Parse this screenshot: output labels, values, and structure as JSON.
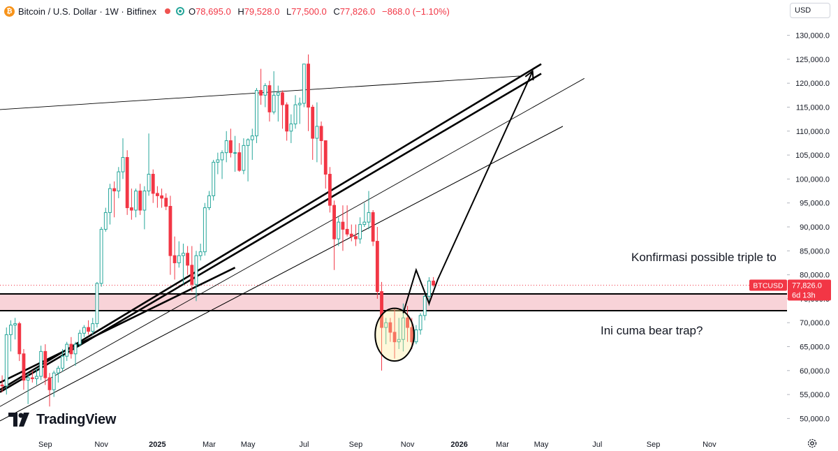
{
  "header": {
    "symbol_title": "Bitcoin / U.S. Dollar · 1W · Bitfinex",
    "ohlc": [
      {
        "k": "O",
        "v": "78,695.0"
      },
      {
        "k": "H",
        "v": "79,528.0"
      },
      {
        "k": "L",
        "v": "77,500.0"
      },
      {
        "k": "C",
        "v": "77,826.0"
      },
      {
        "k": "",
        "v": "−868.0 (−1.10%)"
      }
    ]
  },
  "currency_button": "USD",
  "logo_text": "TradingView",
  "price_label": {
    "ticker": "BTCUSD",
    "price": "77,826.0",
    "countdown": "6d 13h"
  },
  "annotations": {
    "triple_top": "Konfirmasi possible triple to",
    "bear_trap": "Ini cuma bear trap?"
  },
  "colors": {
    "up": "#26a69a",
    "down": "#f23645",
    "zone": "#f8d3d8",
    "text": "#131722",
    "axis_text": "#131722",
    "grid": "#f0f3fa"
  },
  "chart_data": {
    "type": "candlestick",
    "title": "Bitcoin / U.S. Dollar · 1W · Bitfinex",
    "ylim": [
      47000,
      133000
    ],
    "y_ticks": [
      50000,
      55000,
      60000,
      65000,
      70000,
      75000,
      80000,
      85000,
      90000,
      95000,
      100000,
      105000,
      110000,
      115000,
      120000,
      125000,
      130000
    ],
    "y_tick_labels": [
      "50,000.0",
      "55,000.0",
      "60,000.0",
      "65,000.0",
      "70,000.0",
      "75,000.0",
      "80,000.0",
      "85,000.0",
      "90,000.0",
      "95,000.0",
      "100,000.0",
      "105,000.0",
      "110,000.0",
      "115,000.0",
      "120,000.0",
      "125,000.0",
      "130,000.0"
    ],
    "x_ticks": [
      "Sep",
      "Nov",
      "2025",
      "Mar",
      "May",
      "Jul",
      "Sep",
      "Nov",
      "2026",
      "Mar",
      "May",
      "Jul",
      "Sep",
      "Nov"
    ],
    "x_tick_weeks": [
      8,
      21,
      34,
      46,
      55,
      68,
      80,
      92,
      104,
      114,
      123,
      136,
      149,
      162
    ],
    "x_range_weeks": [
      -2.5,
      180
    ],
    "last_price": 77826,
    "candles": [
      [
        -2,
        57000,
        59000,
        55500,
        56800
      ],
      [
        -1,
        56800,
        69000,
        55000,
        67500
      ],
      [
        0,
        67500,
        70500,
        64000,
        69500
      ],
      [
        1,
        69500,
        71000,
        66500,
        69800
      ],
      [
        2,
        69800,
        70200,
        62000,
        63500
      ],
      [
        3,
        63500,
        64500,
        56000,
        58000
      ],
      [
        4,
        58000,
        59500,
        53000,
        58500
      ],
      [
        5,
        58500,
        60000,
        57500,
        58300
      ],
      [
        6,
        58300,
        60500,
        57000,
        58800
      ],
      [
        7,
        58800,
        65200,
        58000,
        64000
      ],
      [
        8,
        64000,
        65500,
        57000,
        58500
      ],
      [
        9,
        58500,
        59500,
        52500,
        56000
      ],
      [
        10,
        56000,
        60000,
        54500,
        59500
      ],
      [
        11,
        59500,
        61000,
        57500,
        60500
      ],
      [
        12,
        60500,
        64500,
        59800,
        63000
      ],
      [
        13,
        63000,
        66000,
        62000,
        65500
      ],
      [
        14,
        65500,
        67000,
        62500,
        63500
      ],
      [
        15,
        63500,
        66000,
        61000,
        65500
      ],
      [
        16,
        65500,
        68500,
        65000,
        67800
      ],
      [
        17,
        67800,
        69500,
        67000,
        69000
      ],
      [
        18,
        69000,
        70500,
        67500,
        68200
      ],
      [
        19,
        68200,
        71000,
        67500,
        69800
      ],
      [
        20,
        69800,
        78500,
        69000,
        78200
      ],
      [
        21,
        78200,
        90000,
        77500,
        89500
      ],
      [
        22,
        89500,
        94000,
        89000,
        93000
      ],
      [
        23,
        93000,
        99000,
        90500,
        98000
      ],
      [
        24,
        98000,
        99500,
        92000,
        97500
      ],
      [
        25,
        97500,
        102500,
        96000,
        101500
      ],
      [
        26,
        101500,
        108500,
        100000,
        104500
      ],
      [
        27,
        104500,
        106000,
        92500,
        94000
      ],
      [
        28,
        94000,
        98000,
        91500,
        93500
      ],
      [
        29,
        93500,
        98000,
        92000,
        97500
      ],
      [
        30,
        97500,
        99000,
        92500,
        93500
      ],
      [
        31,
        93500,
        98500,
        89500,
        97500
      ],
      [
        32,
        97500,
        109500,
        96500,
        101000
      ],
      [
        33,
        101000,
        102000,
        95000,
        97000
      ],
      [
        34,
        97000,
        98500,
        94000,
        96500
      ],
      [
        35,
        96500,
        98000,
        94000,
        96000
      ],
      [
        36,
        96000,
        97000,
        93500,
        94300
      ],
      [
        37,
        94300,
        96500,
        80000,
        84000
      ],
      [
        38,
        84000,
        88000,
        79000,
        82500
      ],
      [
        39,
        82500,
        87000,
        81500,
        84000
      ],
      [
        40,
        84000,
        86500,
        78000,
        84500
      ],
      [
        41,
        84500,
        86000,
        80000,
        82000
      ],
      [
        42,
        82000,
        86000,
        76500,
        78000
      ],
      [
        43,
        78000,
        85000,
        74500,
        84000
      ],
      [
        44,
        84000,
        86500,
        83000,
        84800
      ],
      [
        45,
        84800,
        95000,
        84000,
        94000
      ],
      [
        46,
        94000,
        97500,
        93500,
        96500
      ],
      [
        47,
        96500,
        104000,
        95500,
        103500
      ],
      [
        48,
        103500,
        105500,
        101000,
        104000
      ],
      [
        49,
        104000,
        106000,
        100000,
        105500
      ],
      [
        50,
        105500,
        110000,
        103500,
        108000
      ],
      [
        51,
        108000,
        110500,
        104500,
        105500
      ],
      [
        52,
        105500,
        109000,
        101500,
        105500
      ],
      [
        53,
        105500,
        107500,
        101500,
        101800
      ],
      [
        54,
        101800,
        108500,
        101000,
        107000
      ],
      [
        55,
        107000,
        108500,
        99500,
        108200
      ],
      [
        56,
        108200,
        110500,
        104000,
        109000
      ],
      [
        57,
        109000,
        119000,
        107500,
        118500
      ],
      [
        58,
        118500,
        123000,
        115500,
        117500
      ],
      [
        59,
        117500,
        120000,
        115000,
        119500
      ],
      [
        60,
        119500,
        120500,
        112000,
        114000
      ],
      [
        61,
        114000,
        122500,
        113500,
        117500
      ],
      [
        62,
        117500,
        119500,
        112000,
        118000
      ],
      [
        63,
        118000,
        118500,
        110500,
        115500
      ],
      [
        64,
        115500,
        116000,
        108000,
        110000
      ],
      [
        65,
        110000,
        113500,
        107500,
        111500
      ],
      [
        66,
        111500,
        117500,
        110500,
        115500
      ],
      [
        67,
        115500,
        117000,
        111500,
        115800
      ],
      [
        68,
        115800,
        124000,
        115000,
        124000
      ],
      [
        69,
        124000,
        126000,
        110000,
        115000
      ],
      [
        70,
        115000,
        115500,
        104000,
        108500
      ],
      [
        71,
        108500,
        116000,
        103500,
        111000
      ],
      [
        72,
        111000,
        112000,
        103000,
        108000
      ],
      [
        73,
        108000,
        107500,
        98000,
        101000
      ],
      [
        74,
        101000,
        102500,
        93000,
        94500
      ],
      [
        75,
        94500,
        95500,
        81000,
        87500
      ],
      [
        76,
        87500,
        92000,
        86000,
        91000
      ],
      [
        77,
        91000,
        94500,
        85000,
        89500
      ],
      [
        78,
        89500,
        94500,
        88000,
        88500
      ],
      [
        79,
        88500,
        90500,
        87000,
        88000
      ],
      [
        80,
        88000,
        90500,
        86000,
        87500
      ],
      [
        81,
        87500,
        92000,
        86500,
        90500
      ],
      [
        82,
        90500,
        95000,
        90000,
        91000
      ],
      [
        83,
        91000,
        97500,
        89500,
        93000
      ],
      [
        84,
        93000,
        93500,
        86000,
        87000
      ],
      [
        85,
        87000,
        90000,
        75000,
        76500
      ],
      [
        86,
        76500,
        78500,
        60000,
        69000
      ],
      [
        87,
        69000,
        71000,
        65500,
        70000
      ],
      [
        88,
        70000,
        71000,
        66000,
        68000
      ],
      [
        89,
        68000,
        73000,
        62500,
        66000
      ],
      [
        90,
        66000,
        71000,
        64500,
        66500
      ],
      [
        91,
        66500,
        74000,
        64000,
        71000
      ],
      [
        92,
        71000,
        73500,
        66000,
        69000
      ],
      [
        93,
        69000,
        71000,
        64500,
        66000
      ],
      [
        94,
        66000,
        69500,
        65500,
        68500
      ],
      [
        95,
        68500,
        72000,
        67500,
        71500
      ],
      [
        96,
        71500,
        76500,
        70500,
        75500
      ],
      [
        97,
        75500,
        79500,
        73500,
        78695
      ],
      [
        98,
        78695,
        79528,
        77500,
        77826
      ]
    ],
    "hlines": [
      76000,
      72500
    ],
    "zone": [
      72500,
      76000
    ],
    "trendlines": [
      {
        "from": [
          -2.5,
          57500
        ],
        "to": [
          52,
          81500
        ],
        "style": "thick"
      },
      {
        "from": [
          -2.5,
          56000
        ],
        "to": [
          123,
          124000
        ],
        "style": "thick"
      },
      {
        "from": [
          -2.5,
          55500
        ],
        "to": [
          123,
          122000
        ],
        "style": "thick"
      },
      {
        "from": [
          -2.5,
          52500
        ],
        "to": [
          133,
          121000
        ],
        "style": "thin"
      },
      {
        "from": [
          -2.5,
          49500
        ],
        "to": [
          128,
          111000
        ],
        "style": "thin"
      },
      {
        "from": [
          -2.5,
          49500
        ],
        "to": [
          128,
          111000
        ],
        "style": "thin"
      },
      {
        "from": [
          -2.5,
          114500
        ],
        "to": [
          118,
          121500
        ],
        "style": "thin"
      }
    ],
    "arrow_path": [
      [
        91,
        72000
      ],
      [
        94,
        81000
      ],
      [
        97,
        74000
      ],
      [
        99,
        79000
      ],
      [
        121,
        122500
      ]
    ],
    "ellipse": {
      "center": [
        89,
        67500
      ],
      "rx_weeks": 4.5,
      "ry_price": 5500
    }
  }
}
